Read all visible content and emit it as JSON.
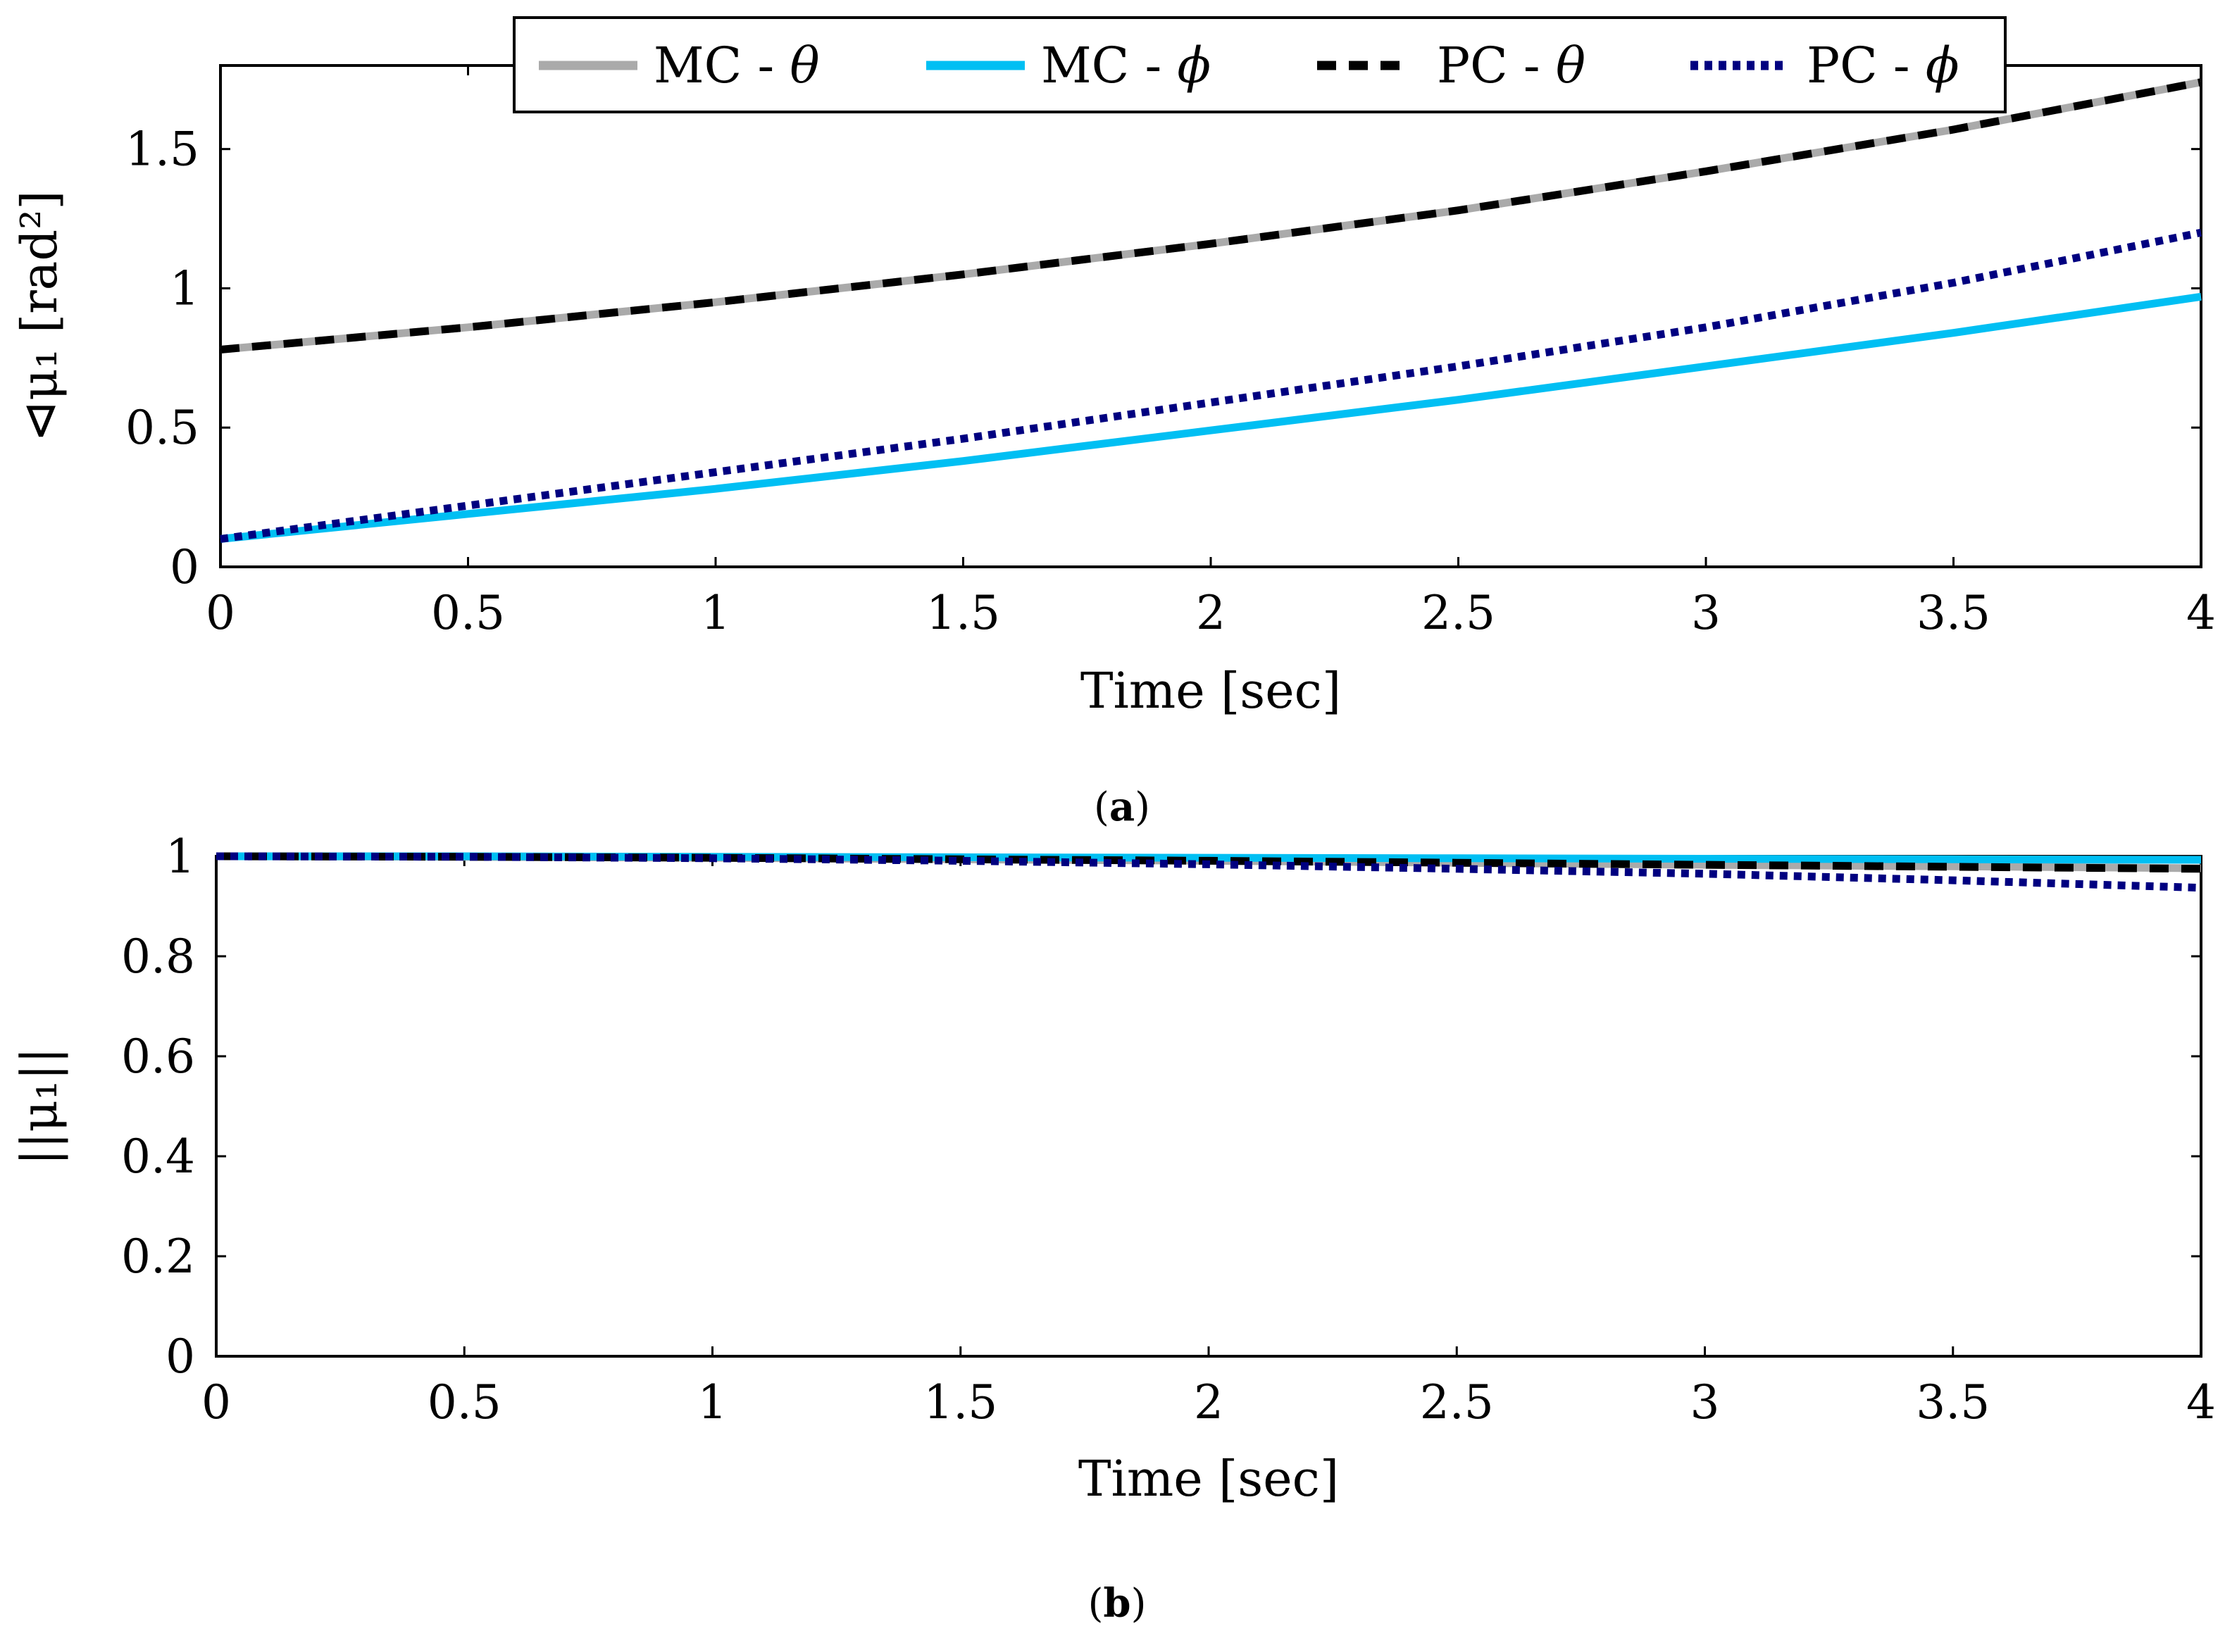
{
  "chart_data": [
    {
      "id": "a",
      "type": "line",
      "caption_letter": "a",
      "xlabel": "Time [sec]",
      "ylabel": "⊲μ₁ [rad²]",
      "xlim": [
        0,
        4
      ],
      "ylim": [
        0,
        1.8
      ],
      "xticks": [
        0,
        0.5,
        1,
        1.5,
        2,
        2.5,
        3,
        3.5,
        4
      ],
      "xtick_labels": [
        "0",
        "0.5",
        "1",
        "1.5",
        "2",
        "2.5",
        "3",
        "3.5",
        "4"
      ],
      "yticks": [
        0,
        0.5,
        1,
        1.5
      ],
      "ytick_labels": [
        "0",
        "0.5",
        "1",
        "1.5"
      ],
      "x": [
        0,
        0.5,
        1,
        1.5,
        2,
        2.5,
        3,
        3.5,
        4
      ],
      "series": [
        {
          "name": "MC - θ",
          "color": "#aaaaaa",
          "style": "solid",
          "values": [
            0.78,
            0.86,
            0.95,
            1.05,
            1.16,
            1.28,
            1.42,
            1.57,
            1.74
          ]
        },
        {
          "name": "MC - ϕ",
          "color": "#00bff3",
          "style": "solid",
          "values": [
            0.1,
            0.19,
            0.28,
            0.38,
            0.49,
            0.6,
            0.72,
            0.84,
            0.97
          ]
        },
        {
          "name": "PC - θ",
          "color": "#000000",
          "style": "dashed",
          "values": [
            0.78,
            0.86,
            0.95,
            1.05,
            1.16,
            1.28,
            1.42,
            1.57,
            1.74
          ]
        },
        {
          "name": "PC - ϕ",
          "color": "#000080",
          "style": "dotted",
          "values": [
            0.1,
            0.22,
            0.34,
            0.46,
            0.59,
            0.72,
            0.86,
            1.02,
            1.2
          ]
        }
      ],
      "legend": {
        "placement": "top-center",
        "entries": [
          {
            "label_main": "MC - ",
            "label_symbol": "θ"
          },
          {
            "label_main": "MC - ",
            "label_symbol": "ϕ"
          },
          {
            "label_main": "PC - ",
            "label_symbol": "θ"
          },
          {
            "label_main": "PC - ",
            "label_symbol": "ϕ"
          }
        ]
      }
    },
    {
      "id": "b",
      "type": "line",
      "caption_letter": "b",
      "xlabel": "Time [sec]",
      "ylabel": "||μ₁||",
      "xlim": [
        0,
        4
      ],
      "ylim": [
        0,
        1
      ],
      "xticks": [
        0,
        0.5,
        1,
        1.5,
        2,
        2.5,
        3,
        3.5,
        4
      ],
      "xtick_labels": [
        "0",
        "0.5",
        "1",
        "1.5",
        "2",
        "2.5",
        "3",
        "3.5",
        "4"
      ],
      "yticks": [
        0,
        0.2,
        0.4,
        0.6,
        0.8,
        1
      ],
      "ytick_labels": [
        "0",
        "0.2",
        "0.4",
        "0.6",
        "0.8",
        "1"
      ],
      "x": [
        0,
        0.5,
        1,
        1.5,
        2,
        2.5,
        3,
        3.5,
        4
      ],
      "series": [
        {
          "name": "MC - θ",
          "color": "#aaaaaa",
          "style": "solid",
          "values": [
            1.0,
            0.999,
            0.997,
            0.994,
            0.991,
            0.987,
            0.983,
            0.98,
            0.976
          ]
        },
        {
          "name": "MC - ϕ",
          "color": "#00bff3",
          "style": "solid",
          "values": [
            1.0,
            1.0,
            0.999,
            0.998,
            0.997,
            0.996,
            0.995,
            0.994,
            0.993
          ]
        },
        {
          "name": "PC - θ",
          "color": "#000000",
          "style": "dashed",
          "values": [
            1.0,
            0.999,
            0.997,
            0.994,
            0.991,
            0.987,
            0.983,
            0.979,
            0.975
          ]
        },
        {
          "name": "PC - ϕ",
          "color": "#000080",
          "style": "dotted",
          "values": [
            1.0,
            0.999,
            0.996,
            0.991,
            0.984,
            0.975,
            0.965,
            0.952,
            0.937
          ]
        }
      ]
    }
  ]
}
